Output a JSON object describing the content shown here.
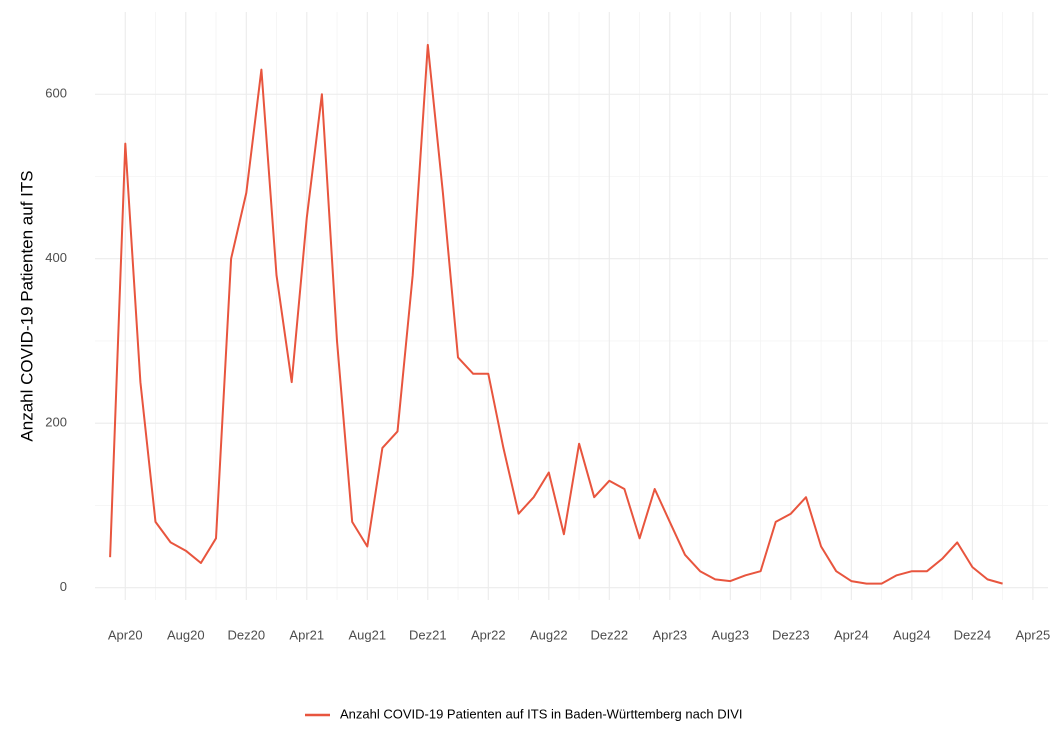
{
  "chart_data": {
    "type": "line",
    "y_label": "Anzahl COVID-19 Patienten auf ITS",
    "x": [
      "2020-03",
      "2020-04",
      "2020-05",
      "2020-06",
      "2020-07",
      "2020-08",
      "2020-09",
      "2020-10",
      "2020-11",
      "2020-12",
      "2021-01",
      "2021-02",
      "2021-03",
      "2021-04",
      "2021-05",
      "2021-06",
      "2021-07",
      "2021-08",
      "2021-09",
      "2021-10",
      "2021-11",
      "2021-12",
      "2022-01",
      "2022-02",
      "2022-03",
      "2022-04",
      "2022-05",
      "2022-06",
      "2022-07",
      "2022-08",
      "2022-09",
      "2022-10",
      "2022-11",
      "2022-12",
      "2023-01",
      "2023-02",
      "2023-03",
      "2023-04",
      "2023-05",
      "2023-06",
      "2023-07",
      "2023-08",
      "2023-09",
      "2023-10",
      "2023-11",
      "2023-12",
      "2024-01",
      "2024-02",
      "2024-03",
      "2024-04",
      "2024-05",
      "2024-06",
      "2024-07",
      "2024-08",
      "2024-09",
      "2024-10",
      "2024-11",
      "2024-12",
      "2025-01",
      "2025-02"
    ],
    "series": [
      {
        "name": "Anzahl COVID-19 Patienten auf ITS in Baden-Württemberg nach DIVI",
        "color": "#e8553e",
        "values": [
          37,
          540,
          250,
          80,
          55,
          45,
          30,
          60,
          400,
          480,
          630,
          380,
          250,
          450,
          600,
          300,
          80,
          50,
          170,
          190,
          380,
          660,
          480,
          280,
          260,
          260,
          170,
          90,
          110,
          140,
          65,
          175,
          110,
          130,
          120,
          60,
          120,
          80,
          40,
          20,
          10,
          8,
          15,
          20,
          80,
          90,
          110,
          50,
          20,
          8,
          5,
          5,
          15,
          20,
          20,
          35,
          55,
          25,
          10,
          5
        ]
      }
    ],
    "xlim": [
      "2020-02",
      "2025-05"
    ],
    "xticks": [
      {
        "value": "2020-04",
        "label": "Apr20"
      },
      {
        "value": "2020-08",
        "label": "Aug20"
      },
      {
        "value": "2020-12",
        "label": "Dez20"
      },
      {
        "value": "2021-04",
        "label": "Apr21"
      },
      {
        "value": "2021-08",
        "label": "Aug21"
      },
      {
        "value": "2021-12",
        "label": "Dez21"
      },
      {
        "value": "2022-04",
        "label": "Apr22"
      },
      {
        "value": "2022-08",
        "label": "Aug22"
      },
      {
        "value": "2022-12",
        "label": "Dez22"
      },
      {
        "value": "2023-04",
        "label": "Apr23"
      },
      {
        "value": "2023-08",
        "label": "Aug23"
      },
      {
        "value": "2023-12",
        "label": "Dez23"
      },
      {
        "value": "2024-04",
        "label": "Apr24"
      },
      {
        "value": "2024-08",
        "label": "Aug24"
      },
      {
        "value": "2024-12",
        "label": "Dez24"
      },
      {
        "value": "2025-04",
        "label": "Apr25"
      }
    ],
    "ylim": [
      -15,
      700
    ],
    "yticks": [
      0,
      200,
      400,
      600
    ],
    "grid": true,
    "legend": "bottom"
  }
}
